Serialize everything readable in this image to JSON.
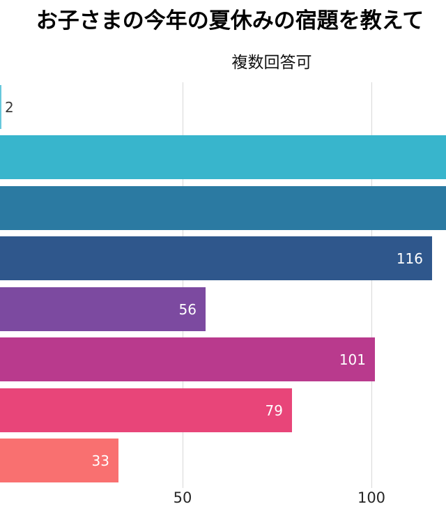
{
  "chart_data": {
    "type": "bar",
    "orientation": "horizontal",
    "title": "お子さまの今年の夏休みの宿題を教えて",
    "subtitle": "複数回答可",
    "x_ticks": [
      50,
      100
    ],
    "grid": true,
    "legend": "none",
    "notes": "category labels are cropped off the left edge of the frame; the second and third bars extend beyond the right edge so their values are not visible",
    "bars": [
      {
        "value": 2,
        "label": "2",
        "color": "#67c8dc",
        "label_position": "outside",
        "cutoff": false
      },
      {
        "value": null,
        "label": "",
        "color": "#38b5cc",
        "label_position": "none",
        "cutoff": true
      },
      {
        "value": null,
        "label": "",
        "color": "#2b7aa2",
        "label_position": "none",
        "cutoff": true
      },
      {
        "value": 116,
        "label": "116",
        "color": "#2f578c",
        "label_position": "inside",
        "cutoff": false
      },
      {
        "value": 56,
        "label": "56",
        "color": "#7c4aa0",
        "label_position": "inside",
        "cutoff": false
      },
      {
        "value": 101,
        "label": "101",
        "color": "#b93a8d",
        "label_position": "inside",
        "cutoff": false
      },
      {
        "value": 79,
        "label": "79",
        "color": "#e84579",
        "label_position": "inside",
        "cutoff": false
      },
      {
        "value": 33,
        "label": "33",
        "color": "#f97070",
        "label_position": "inside",
        "cutoff": false
      }
    ]
  },
  "colors": {
    "background": "#ffffff",
    "gridline": "#d8d8d8",
    "title": "#000000",
    "subtitle": "#111111",
    "tick_label": "#262626",
    "value_label_inside": "#ffffff",
    "value_label_outside": "#3a3a3a"
  }
}
